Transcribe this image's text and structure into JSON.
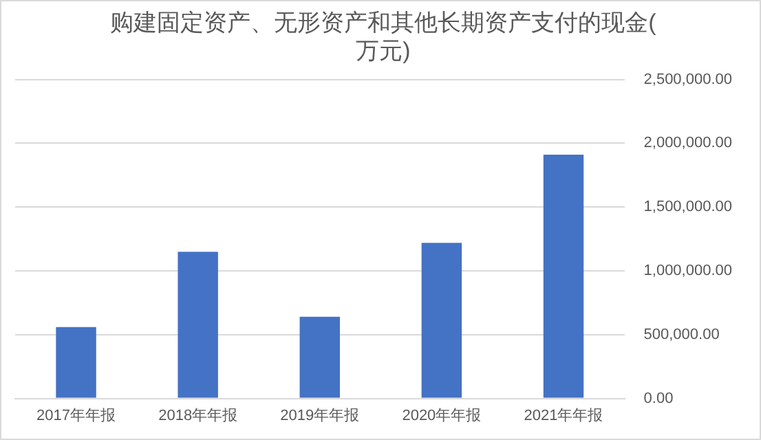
{
  "chart_data": {
    "type": "bar",
    "title": "购建固定资产、无形资产和其他长期资产支付的现金(万元)",
    "categories": [
      "2017年年报",
      "2018年年报",
      "2019年年报",
      "2020年年报",
      "2021年年报"
    ],
    "values": [
      560000,
      1150000,
      640000,
      1220000,
      1910000
    ],
    "color": "#4472c4",
    "ylim": [
      0,
      2500000
    ],
    "yticks": [
      {
        "value": 0,
        "label": "0.00"
      },
      {
        "value": 500000,
        "label": "500,000.00"
      },
      {
        "value": 1000000,
        "label": "1,000,000.00"
      },
      {
        "value": 1500000,
        "label": "1,500,000.00"
      },
      {
        "value": 2000000,
        "label": "2,000,000.00"
      },
      {
        "value": 2500000,
        "label": "2,500,000.00"
      }
    ],
    "grid": "y"
  }
}
